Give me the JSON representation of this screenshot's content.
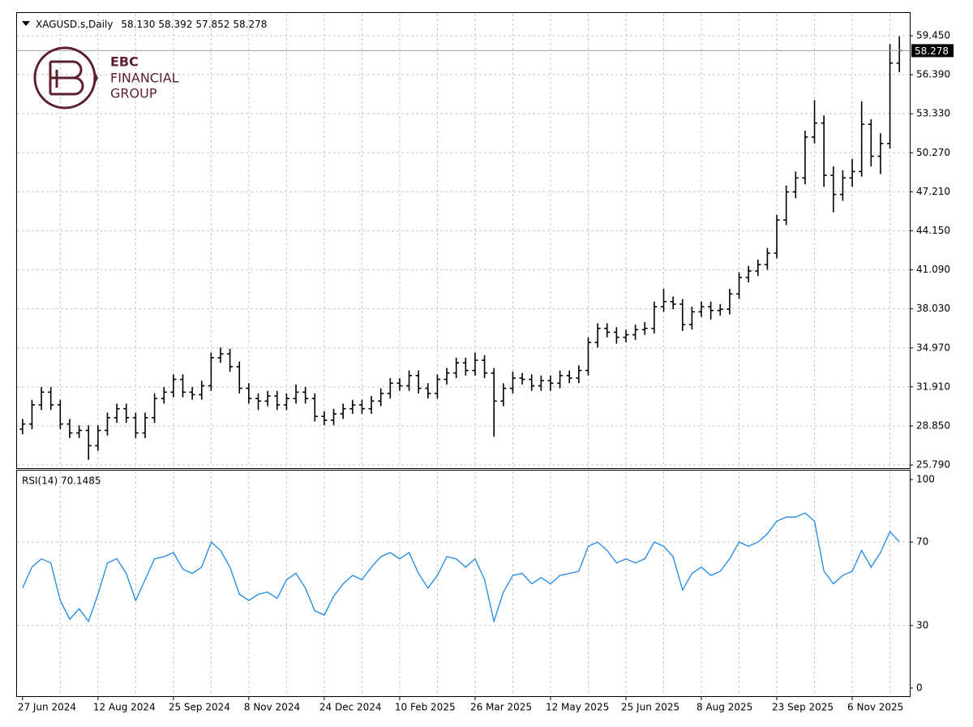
{
  "logo": {
    "lines": [
      "EBC",
      "FINANCIAL",
      "GROUP"
    ]
  },
  "chart_data": [
    {
      "type": "ohlc",
      "title": "XAGUSD.s,Daily",
      "last_ohlc_labels": [
        "58.130",
        "58.392",
        "57.852",
        "58.278"
      ],
      "color": "#000000",
      "grid": true,
      "ylim": [
        25.54,
        61.23
      ],
      "yticks": [
        {
          "value": 25.79,
          "label": "25.790"
        },
        {
          "value": 28.85,
          "label": "28.850"
        },
        {
          "value": 31.91,
          "label": "31.910"
        },
        {
          "value": 34.97,
          "label": "34.970"
        },
        {
          "value": 38.03,
          "label": "38.030"
        },
        {
          "value": 41.09,
          "label": "41.090"
        },
        {
          "value": 44.15,
          "label": "44.150"
        },
        {
          "value": 47.21,
          "label": "47.210"
        },
        {
          "value": 50.27,
          "label": "50.270"
        },
        {
          "value": 53.33,
          "label": "53.330"
        },
        {
          "value": 56.39,
          "label": "56.390"
        },
        {
          "value": 59.45,
          "label": "59.450"
        }
      ],
      "last_price": {
        "value": 58.278,
        "label": "58.278"
      },
      "open": [
        28.6,
        29.0,
        30.5,
        31.5,
        30.5,
        29.0,
        28.3,
        28.5,
        27.3,
        28.5,
        29.5,
        30.2,
        29.5,
        28.3,
        29.5,
        31.0,
        31.5,
        32.5,
        31.5,
        31.3,
        32.0,
        34.2,
        34.5,
        33.5,
        31.8,
        31.0,
        30.8,
        31.2,
        30.5,
        31.0,
        31.5,
        31.0,
        29.6,
        29.3,
        29.8,
        30.2,
        30.5,
        30.2,
        30.8,
        31.4,
        32.2,
        32.0,
        32.8,
        31.8,
        31.4,
        32.5,
        33.0,
        33.8,
        33.2,
        34.0,
        33.0,
        30.8,
        31.8,
        32.6,
        32.5,
        32.0,
        32.4,
        32.2,
        32.8,
        32.6,
        33.2,
        35.4,
        36.5,
        36.2,
        35.8,
        36.0,
        36.4,
        36.5,
        38.2,
        38.6,
        38.4,
        36.8,
        37.8,
        38.2,
        37.9,
        38.0,
        39.2,
        40.5,
        41.0,
        41.5,
        42.4,
        45.0,
        47.2,
        48.3,
        51.5,
        52.6,
        48.5,
        47.0,
        48.3,
        48.8,
        52.5,
        50.0,
        51.0,
        57.3
      ],
      "high": [
        29.4,
        30.9,
        31.9,
        31.9,
        30.9,
        29.4,
        28.9,
        28.9,
        28.9,
        29.9,
        30.6,
        30.6,
        29.9,
        29.9,
        31.4,
        31.9,
        32.9,
        32.9,
        31.9,
        32.4,
        34.6,
        35.0,
        34.9,
        33.9,
        32.2,
        31.4,
        31.6,
        31.6,
        31.4,
        32.1,
        31.9,
        31.4,
        30.0,
        30.2,
        30.6,
        30.9,
        30.9,
        31.2,
        31.8,
        32.6,
        32.6,
        33.2,
        33.2,
        32.2,
        32.9,
        33.4,
        34.2,
        34.2,
        34.6,
        34.4,
        33.4,
        32.2,
        33.1,
        33.0,
        32.9,
        32.8,
        32.8,
        33.2,
        33.2,
        33.6,
        35.8,
        36.9,
        36.9,
        36.6,
        36.4,
        36.8,
        37.0,
        38.6,
        39.6,
        39.0,
        38.8,
        38.2,
        38.6,
        38.6,
        38.4,
        39.6,
        40.9,
        41.4,
        41.9,
        42.8,
        45.4,
        47.7,
        48.8,
        52.0,
        54.4,
        53.2,
        49.2,
        48.9,
        49.8,
        54.3,
        52.9,
        51.8,
        58.8,
        59.4
      ],
      "low": [
        28.2,
        28.6,
        30.1,
        30.1,
        28.6,
        27.9,
        27.9,
        26.2,
        26.9,
        28.1,
        29.1,
        29.1,
        27.9,
        27.9,
        29.1,
        30.6,
        31.1,
        31.1,
        30.9,
        30.9,
        31.6,
        33.8,
        33.1,
        31.4,
        30.6,
        30.1,
        30.4,
        30.1,
        30.1,
        30.6,
        30.6,
        29.2,
        28.9,
        28.9,
        29.4,
        29.8,
        29.8,
        29.8,
        30.4,
        31.0,
        31.6,
        31.6,
        31.4,
        31.0,
        31.0,
        32.1,
        32.6,
        32.8,
        32.8,
        32.6,
        28.0,
        30.4,
        31.4,
        32.1,
        31.6,
        31.6,
        31.6,
        31.8,
        32.2,
        32.2,
        32.8,
        35.0,
        35.8,
        35.3,
        35.4,
        35.6,
        36.0,
        36.1,
        37.8,
        38.0,
        36.3,
        36.4,
        37.4,
        37.2,
        37.5,
        37.6,
        38.8,
        40.1,
        40.6,
        41.1,
        42.0,
        44.6,
        46.7,
        47.8,
        51.0,
        47.6,
        45.6,
        46.5,
        47.6,
        48.4,
        49.2,
        48.6,
        50.6,
        56.6
      ],
      "close": [
        29.0,
        30.5,
        31.5,
        30.5,
        29.0,
        28.3,
        28.5,
        27.3,
        28.5,
        29.5,
        30.2,
        29.5,
        28.3,
        29.5,
        31.0,
        31.5,
        32.5,
        31.5,
        31.3,
        32.0,
        34.2,
        34.5,
        33.5,
        31.8,
        31.0,
        30.8,
        31.2,
        30.5,
        31.0,
        31.5,
        31.0,
        29.6,
        29.3,
        29.8,
        30.2,
        30.5,
        30.2,
        30.8,
        31.4,
        32.2,
        32.0,
        32.8,
        31.8,
        31.4,
        32.5,
        33.0,
        33.8,
        33.2,
        34.0,
        33.0,
        30.8,
        31.8,
        32.6,
        32.5,
        32.0,
        32.4,
        32.2,
        32.8,
        32.6,
        33.2,
        35.4,
        36.5,
        36.2,
        35.8,
        36.0,
        36.4,
        36.5,
        38.2,
        38.6,
        38.4,
        36.8,
        37.8,
        38.2,
        37.9,
        38.0,
        39.2,
        40.5,
        41.0,
        41.5,
        42.4,
        45.0,
        47.2,
        48.3,
        51.5,
        52.6,
        48.5,
        47.0,
        48.3,
        48.8,
        52.5,
        50.0,
        51.0,
        57.3,
        58.278
      ]
    },
    {
      "type": "line",
      "title": "RSI(14) 70.1485",
      "color": "#1e88e5",
      "grid": true,
      "ylim": [
        -3.9,
        104.3
      ],
      "yticks": [
        0,
        30,
        70,
        100
      ],
      "categories": [
        "27 Jun 2024",
        null,
        null,
        null,
        null,
        null,
        null,
        null,
        "12 Aug 2024",
        null,
        null,
        null,
        null,
        null,
        null,
        null,
        "25 Sep 2024",
        null,
        null,
        null,
        null,
        null,
        null,
        null,
        "8 Nov 2024",
        null,
        null,
        null,
        null,
        null,
        null,
        null,
        "24 Dec 2024",
        null,
        null,
        null,
        null,
        null,
        null,
        null,
        "10 Feb 2025",
        null,
        null,
        null,
        null,
        null,
        null,
        null,
        "26 Mar 2025",
        null,
        null,
        null,
        null,
        null,
        null,
        null,
        "12 May 2025",
        null,
        null,
        null,
        null,
        null,
        null,
        null,
        "25 Jun 2025",
        null,
        null,
        null,
        null,
        null,
        null,
        null,
        "8 Aug 2025",
        null,
        null,
        null,
        null,
        null,
        null,
        null,
        "23 Sep 2025",
        null,
        null,
        null,
        null,
        null,
        null,
        null,
        "6 Nov 2025",
        null,
        null,
        null,
        null,
        null
      ],
      "values": [
        48,
        58,
        62,
        60,
        42,
        33,
        38,
        32,
        45,
        60,
        62,
        55,
        42,
        52,
        62,
        63,
        65,
        57,
        55,
        58,
        70,
        66,
        58,
        45,
        42,
        45,
        46,
        43,
        52,
        55,
        48,
        37,
        35,
        44,
        50,
        54,
        52,
        58,
        63,
        65,
        62,
        65,
        55,
        48,
        54,
        63,
        62,
        58,
        62,
        52,
        32,
        46,
        54,
        55,
        50,
        53,
        50,
        54,
        55,
        56,
        68,
        70,
        66,
        60,
        62,
        60,
        62,
        70,
        68,
        63,
        47,
        55,
        58,
        54,
        56,
        62,
        70,
        68,
        70,
        74,
        80,
        82,
        82,
        84,
        80,
        56,
        50,
        54,
        56,
        66,
        58,
        65,
        75,
        70.1485
      ]
    }
  ]
}
